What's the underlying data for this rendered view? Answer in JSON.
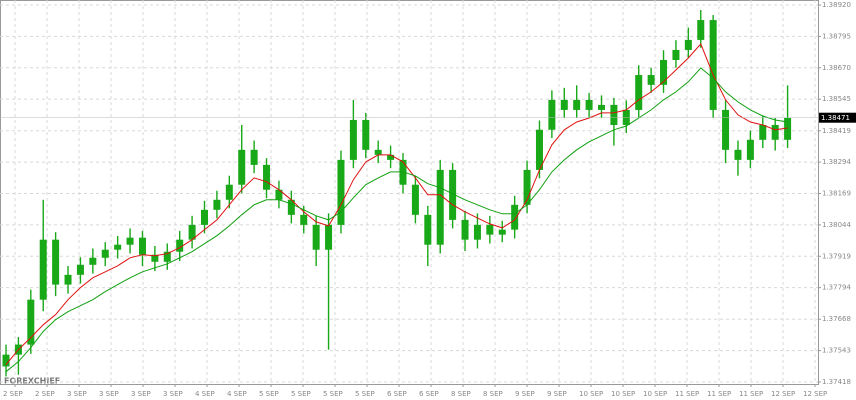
{
  "chart_data": {
    "type": "candlestick",
    "watermark": "FOREXCHIEF",
    "candle_color": "#18a818",
    "grid": true,
    "ylim": [
      1.3741,
      1.3894
    ],
    "yticks": [
      {
        "value": 1.3892,
        "label": "1.38920"
      },
      1.38795,
      {
        "value": 1.3867,
        "label": "1.38670"
      },
      1.38545,
      1.38419,
      1.38294,
      1.38169,
      1.38044,
      1.37919,
      1.37794,
      1.37668,
      1.37543,
      1.37418
    ],
    "last_price": 1.38471,
    "x_labels": [
      "2 SEP",
      "2 SEP",
      "3 SEP",
      "3 SEP",
      "3 SEP",
      "3 SEP",
      "4 SEP",
      "4 SEP",
      "5 SEP",
      "5 SEP",
      "5 SEP",
      "5 SEP",
      "6 SEP",
      "6 SEP",
      "8 SEP",
      "8 SEP",
      "9 SEP",
      "9 SEP",
      "10 SEP",
      "10 SEP",
      "10 SEP",
      "11 SEP",
      "11 SEP",
      "11 SEP",
      "12 SEP",
      "12 SEP"
    ],
    "open": [
      1.3748,
      1.37527,
      1.37567,
      1.37746,
      1.37985,
      1.37806,
      1.37845,
      1.37885,
      1.37913,
      1.37945,
      1.37965,
      1.37993,
      1.37925,
      1.37897,
      1.37937,
      1.37985,
      1.38044,
      1.38104,
      1.38144,
      1.38204,
      1.38343,
      1.38283,
      1.38184,
      1.38144,
      1.38084,
      1.38044,
      1.37945,
      1.38044,
      1.38303,
      1.38462,
      1.38343,
      1.38323,
      1.38303,
      1.38204,
      1.38084,
      1.37965,
      1.38263,
      1.38064,
      1.37985,
      1.38044,
      1.38005,
      1.38025,
      1.38124,
      1.38263,
      1.38423,
      1.38542,
      1.38502,
      1.38542,
      1.38502,
      1.38522,
      1.38442,
      1.38502,
      1.38641,
      1.38602,
      1.38701,
      1.38741,
      1.38781,
      1.3886,
      1.38502,
      1.38343,
      1.38303,
      1.38383,
      1.38442,
      1.38383
    ],
    "high": [
      1.37567,
      1.37597,
      1.37786,
      1.38144,
      1.38015,
      1.3788,
      1.37915,
      1.3795,
      1.37975,
      1.38,
      1.3803,
      1.3802,
      1.3796,
      1.3797,
      1.3802,
      1.3808,
      1.3814,
      1.3818,
      1.3824,
      1.38442,
      1.3838,
      1.3831,
      1.3822,
      1.3818,
      1.3812,
      1.3808,
      1.3809,
      1.3834,
      1.38542,
      1.3849,
      1.3838,
      1.3836,
      1.3833,
      1.3824,
      1.3812,
      1.38303,
      1.3829,
      1.381,
      1.3809,
      1.3808,
      1.3806,
      1.3816,
      1.383,
      1.3846,
      1.3858,
      1.3859,
      1.386,
      1.3857,
      1.3856,
      1.3855,
      1.3854,
      1.3868,
      1.3867,
      1.3874,
      1.3878,
      1.3883,
      1.389,
      1.3888,
      1.3854,
      1.3838,
      1.3842,
      1.3848,
      1.3847,
      1.386
    ],
    "low": [
      1.3744,
      1.37447,
      1.3753,
      1.377,
      1.3776,
      1.3777,
      1.3781,
      1.3785,
      1.3788,
      1.3791,
      1.3793,
      1.3788,
      1.3786,
      1.37865,
      1.379,
      1.3795,
      1.3801,
      1.3807,
      1.3811,
      1.3817,
      1.3825,
      1.3815,
      1.3811,
      1.3805,
      1.3801,
      1.3788,
      1.37547,
      1.3801,
      1.3827,
      1.3831,
      1.3829,
      1.3827,
      1.3817,
      1.3805,
      1.3788,
      1.3793,
      1.3803,
      1.3794,
      1.3795,
      1.3797,
      1.37975,
      1.3799,
      1.3809,
      1.3823,
      1.3839,
      1.3847,
      1.3847,
      1.3847,
      1.3847,
      1.3836,
      1.3841,
      1.3847,
      1.3857,
      1.3857,
      1.3867,
      1.3871,
      1.3875,
      1.3847,
      1.3829,
      1.3824,
      1.3827,
      1.3835,
      1.3834,
      1.3835
    ],
    "close": [
      1.37527,
      1.37567,
      1.37746,
      1.37985,
      1.37806,
      1.37845,
      1.37885,
      1.37913,
      1.37945,
      1.37965,
      1.37993,
      1.37925,
      1.37897,
      1.37937,
      1.37985,
      1.38044,
      1.38104,
      1.38144,
      1.38204,
      1.38343,
      1.38283,
      1.38184,
      1.38144,
      1.38084,
      1.38044,
      1.37945,
      1.38044,
      1.38303,
      1.38462,
      1.38343,
      1.38323,
      1.38303,
      1.38204,
      1.38084,
      1.37965,
      1.38263,
      1.38064,
      1.37985,
      1.38044,
      1.38005,
      1.38025,
      1.38124,
      1.38263,
      1.38423,
      1.38542,
      1.38502,
      1.38542,
      1.38502,
      1.38522,
      1.38442,
      1.38502,
      1.38641,
      1.38602,
      1.38701,
      1.38741,
      1.38781,
      1.3886,
      1.38502,
      1.38343,
      1.38303,
      1.38383,
      1.38442,
      1.38383,
      1.38471
    ],
    "lines": [
      {
        "color": "#e01010",
        "values": [
          1.37487,
          1.37547,
          1.37595,
          1.37646,
          1.37686,
          1.37746,
          1.37794,
          1.37833,
          1.37857,
          1.37881,
          1.37913,
          1.37925,
          1.37921,
          1.37929,
          1.37953,
          1.37985,
          1.38025,
          1.38064,
          1.38124,
          1.38184,
          1.38231,
          1.38216,
          1.38184,
          1.38144,
          1.38096,
          1.38056,
          1.3804,
          1.38124,
          1.38224,
          1.38295,
          1.38323,
          1.38323,
          1.38295,
          1.38231,
          1.38164,
          1.38164,
          1.38124,
          1.38096,
          1.38072,
          1.38048,
          1.38032,
          1.38064,
          1.38144,
          1.38263,
          1.38363,
          1.38423,
          1.38454,
          1.3847,
          1.3849,
          1.3849,
          1.38502,
          1.38542,
          1.38574,
          1.38614,
          1.38661,
          1.38709,
          1.38765,
          1.38641,
          1.38542,
          1.38482,
          1.38454,
          1.38442,
          1.38423,
          1.3843
        ]
      },
      {
        "color": "#10a010",
        "values": [
          1.37459,
          1.37499,
          1.37555,
          1.37619,
          1.37666,
          1.37698,
          1.37722,
          1.37746,
          1.37778,
          1.37806,
          1.37833,
          1.37857,
          1.37873,
          1.37889,
          1.37913,
          1.37937,
          1.37969,
          1.38001,
          1.3804,
          1.38084,
          1.38124,
          1.38144,
          1.38144,
          1.38128,
          1.38104,
          1.3808,
          1.38064,
          1.38096,
          1.38152,
          1.38204,
          1.38231,
          1.38255,
          1.38255,
          1.38239,
          1.38208,
          1.38192,
          1.38168,
          1.38144,
          1.38124,
          1.38104,
          1.38088,
          1.38088,
          1.38124,
          1.38184,
          1.38255,
          1.38303,
          1.38343,
          1.38375,
          1.38399,
          1.38423,
          1.38438,
          1.3847,
          1.38502,
          1.38542,
          1.38574,
          1.38614,
          1.38669,
          1.38629,
          1.38574,
          1.38534,
          1.38502,
          1.38478,
          1.38462,
          1.38454
        ]
      }
    ]
  }
}
